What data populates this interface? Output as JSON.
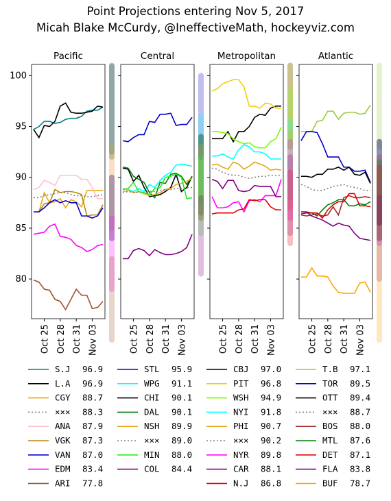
{
  "title": "Point Projections entering Nov 5, 2017",
  "subtitle": "Micah Blake McCurdy, @IneffectiveMath, hockeyviz.com",
  "chart_data": [
    {
      "type": "line",
      "title": "Pacific",
      "x": [
        "Oct 23",
        "Oct 24",
        "Oct 25",
        "Oct 26",
        "Oct 27",
        "Oct 28",
        "Oct 29",
        "Oct 30",
        "Oct 31",
        "Nov 01",
        "Nov 02",
        "Nov 03",
        "Nov 04",
        "Nov 05"
      ],
      "xticks": [
        "Oct 25",
        "Oct 28",
        "Oct 31",
        "Nov 03"
      ],
      "ylim": [
        76.1,
        101.1
      ],
      "yticks": [
        80,
        85,
        90,
        95,
        100
      ],
      "series": [
        {
          "name": "S.J",
          "value_label": "96.9",
          "color": "#008080",
          "range": [
            92.5,
            100.9
          ],
          "values": [
            94.7,
            95.0,
            95.5,
            95.5,
            95.3,
            95.4,
            95.7,
            95.8,
            95.8,
            96.0,
            96.5,
            96.6,
            96.6,
            96.9
          ]
        },
        {
          "name": "L.A",
          "value_label": "96.9",
          "color": "#000000",
          "range": [
            92,
            101
          ],
          "values": [
            94.7,
            93.9,
            95.1,
            95.0,
            95.5,
            97.0,
            97.3,
            96.4,
            96.3,
            96.3,
            96.4,
            96.5,
            97.0,
            96.9
          ]
        },
        {
          "name": "CGY",
          "value_label": "88.7",
          "color": "#e6a817",
          "range": [
            85,
            93
          ],
          "values": [
            86.6,
            86.6,
            88.5,
            87.5,
            87.6,
            87.9,
            87.0,
            87.8,
            87.6,
            87.1,
            88.7,
            88.7,
            88.7,
            88.7
          ]
        },
        {
          "name": "×××",
          "value_label": "88.3",
          "color": "#808080",
          "dash": true,
          "values": [
            88.0,
            88.0,
            88.2,
            88.3,
            88.4,
            88.5,
            88.5,
            88.3,
            88.2,
            88.2,
            88.1,
            88.1,
            88.2,
            88.3
          ]
        },
        {
          "name": "ANA",
          "value_label": "87.9",
          "color": "#ffc0cb",
          "range": [
            85,
            91.5
          ],
          "values": [
            88.8,
            89.0,
            89.7,
            89.5,
            89.2,
            90.2,
            90.2,
            90.2,
            90.2,
            89.8,
            89.8,
            89.0,
            87.9,
            87.9
          ]
        },
        {
          "name": "VGK",
          "value_label": "87.3",
          "color": "#b8860b",
          "range": [
            84,
            90
          ],
          "values": [
            86.6,
            86.6,
            87.4,
            87.5,
            88.8,
            88.5,
            88.6,
            88.6,
            88.5,
            88.3,
            86.2,
            86.3,
            86.3,
            87.3
          ]
        },
        {
          "name": "VAN",
          "value_label": "87.0",
          "color": "#0000cd",
          "range": [
            84,
            90
          ],
          "values": [
            86.6,
            86.6,
            87.0,
            87.5,
            87.8,
            87.5,
            87.7,
            87.5,
            87.5,
            86.2,
            86.2,
            86.0,
            86.2,
            87.0
          ]
        },
        {
          "name": "EDM",
          "value_label": "83.4",
          "color": "#ff00ff",
          "range": [
            79,
            86
          ],
          "values": [
            84.4,
            84.5,
            84.6,
            85.2,
            85.4,
            84.2,
            84.1,
            83.9,
            83.3,
            83.1,
            82.7,
            82.9,
            83.3,
            83.4
          ]
        },
        {
          "name": "ARI",
          "value_label": "77.8",
          "color": "#a0522d",
          "range": [
            74,
            82
          ],
          "values": [
            79.9,
            79.7,
            79.0,
            78.9,
            78.0,
            77.8,
            77.0,
            78.0,
            79.0,
            78.4,
            78.4,
            77.1,
            77.2,
            77.8
          ]
        }
      ]
    },
    {
      "type": "line",
      "title": "Central",
      "x": [
        "Oct 23",
        "Oct 24",
        "Oct 25",
        "Oct 26",
        "Oct 27",
        "Oct 28",
        "Oct 29",
        "Oct 30",
        "Oct 31",
        "Nov 01",
        "Nov 02",
        "Nov 03",
        "Nov 04",
        "Nov 05"
      ],
      "xticks": [
        "Oct 25",
        "Oct 28",
        "Oct 31",
        "Nov 03"
      ],
      "series": [
        {
          "name": "STL",
          "value_label": "95.9",
          "color": "#0000cd",
          "range": [
            92,
            100
          ],
          "values": [
            93.6,
            93.5,
            93.9,
            94.2,
            94.2,
            95.5,
            95.4,
            96.2,
            96.2,
            96.3,
            95.1,
            95.2,
            95.2,
            95.9
          ]
        },
        {
          "name": "WPG",
          "value_label": "91.1",
          "color": "#00ffff",
          "range": [
            87.5,
            96
          ],
          "values": [
            88.9,
            88.8,
            88.6,
            88.9,
            88.6,
            89.3,
            89.0,
            89.7,
            90.2,
            90.5,
            91.2,
            91.3,
            91.2,
            91.1
          ]
        },
        {
          "name": "CHI",
          "value_label": "90.1",
          "color": "#000000",
          "range": [
            86.5,
            94
          ],
          "values": [
            90.9,
            90.8,
            89.6,
            90.2,
            89.0,
            88.1,
            88.2,
            88.3,
            88.6,
            89.0,
            90.3,
            88.6,
            89.0,
            90.1
          ]
        },
        {
          "name": "DAL",
          "value_label": "90.1",
          "color": "#008000",
          "range": [
            86,
            94
          ],
          "values": [
            91.0,
            90.9,
            90.1,
            89.8,
            89.5,
            88.5,
            88.0,
            89.5,
            89.4,
            90.3,
            90.4,
            90.1,
            89.3,
            90.1
          ]
        },
        {
          "name": "NSH",
          "value_label": "89.9",
          "color": "#e6a817",
          "range": [
            86,
            93
          ],
          "values": [
            88.6,
            88.7,
            88.5,
            88.6,
            88.4,
            88.2,
            88.3,
            88.5,
            88.8,
            88.9,
            89.3,
            89.4,
            89.6,
            89.9
          ]
        },
        {
          "name": "×××",
          "value_label": "89.0",
          "color": "#808080",
          "dash": true,
          "values": [
            88.5,
            88.6,
            88.5,
            88.5,
            88.5,
            88.6,
            88.6,
            88.7,
            88.8,
            88.8,
            88.9,
            88.9,
            89.0,
            89.0
          ]
        },
        {
          "name": "MIN",
          "value_label": "88.0",
          "color": "#22ee22",
          "range": [
            84.5,
            92
          ],
          "values": [
            88.8,
            88.9,
            89.5,
            88.6,
            88.5,
            88.3,
            88.9,
            89.0,
            90.0,
            90.1,
            90.3,
            90.0,
            87.9,
            88.0
          ]
        },
        {
          "name": "COL",
          "value_label": "84.4",
          "color": "#800080",
          "range": [
            80.5,
            88
          ],
          "values": [
            82.0,
            82.0,
            82.8,
            83.0,
            82.8,
            82.3,
            82.9,
            82.6,
            82.4,
            82.4,
            82.5,
            82.7,
            83.1,
            84.4
          ]
        }
      ]
    },
    {
      "type": "line",
      "title": "Metropolitan",
      "x": [
        "Oct 23",
        "Oct 24",
        "Oct 25",
        "Oct 26",
        "Oct 27",
        "Oct 28",
        "Oct 29",
        "Oct 30",
        "Oct 31",
        "Nov 01",
        "Nov 02",
        "Nov 03",
        "Nov 04",
        "Nov 05"
      ],
      "xticks": [
        "Oct 25",
        "Oct 28",
        "Oct 31",
        "Nov 03"
      ],
      "series": [
        {
          "name": "CBJ",
          "value_label": "97.0",
          "color": "#000000",
          "range": [
            93,
            101
          ],
          "values": [
            93.8,
            93.8,
            93.8,
            94.5,
            93.5,
            94.5,
            94.5,
            95.0,
            95.9,
            96.2,
            96.1,
            96.8,
            97.0,
            97.0
          ]
        },
        {
          "name": "PIT",
          "value_label": "96.8",
          "color": "#f0d000",
          "range": [
            93,
            101
          ],
          "values": [
            98.5,
            98.7,
            99.2,
            99.4,
            99.6,
            99.6,
            98.9,
            97.0,
            97.0,
            96.8,
            97.3,
            97.2,
            96.8,
            96.8
          ]
        },
        {
          "name": "WSH",
          "value_label": "94.9",
          "color": "#7cfc00",
          "range": [
            91,
            98.5
          ],
          "values": [
            94.5,
            94.5,
            94.4,
            94.3,
            93.8,
            93.5,
            93.3,
            93.4,
            93.0,
            92.9,
            92.9,
            93.5,
            93.8,
            94.9
          ]
        },
        {
          "name": "NYI",
          "value_label": "91.8",
          "color": "#00ffff",
          "range": [
            88,
            95.5
          ],
          "values": [
            92.1,
            92.1,
            92.3,
            92.0,
            91.8,
            92.7,
            93.2,
            93.0,
            92.5,
            92.5,
            92.3,
            91.8,
            91.8,
            91.8
          ]
        },
        {
          "name": "PHI",
          "value_label": "90.7",
          "color": "#e6a817",
          "range": [
            87,
            94.5
          ],
          "values": [
            91.2,
            91.3,
            91.0,
            90.8,
            91.5,
            91.3,
            90.8,
            91.1,
            91.5,
            91.3,
            91.1,
            90.7,
            90.8,
            90.7
          ]
        },
        {
          "name": "×××",
          "value_label": "90.2",
          "color": "#808080",
          "dash": true,
          "values": [
            90.9,
            90.8,
            90.5,
            90.3,
            90.2,
            90.2,
            90.0,
            89.9,
            90.0,
            90.1,
            90.1,
            90.2,
            90.2,
            90.2
          ]
        },
        {
          "name": "NYR",
          "value_label": "89.8",
          "color": "#ff00ff",
          "range": [
            86,
            93.5
          ],
          "values": [
            88.1,
            87.0,
            87.0,
            87.1,
            87.5,
            87.6,
            86.6,
            87.7,
            87.8,
            87.6,
            88.2,
            88.2,
            88.2,
            89.8
          ]
        },
        {
          "name": "CAR",
          "value_label": "88.1",
          "color": "#800080",
          "range": [
            84.5,
            92
          ],
          "values": [
            89.8,
            89.6,
            88.9,
            89.7,
            89.7,
            88.7,
            88.6,
            88.7,
            89.2,
            89.1,
            89.1,
            89.1,
            88.1,
            88.1
          ]
        },
        {
          "name": "N.J",
          "value_label": "86.8",
          "color": "#e00000",
          "range": [
            83.5,
            90.5
          ],
          "values": [
            86.4,
            86.5,
            86.5,
            86.5,
            86.5,
            86.8,
            86.9,
            87.8,
            87.7,
            87.8,
            87.8,
            87.1,
            86.8,
            86.8
          ]
        }
      ]
    },
    {
      "type": "line",
      "title": "Atlantic",
      "x": [
        "Oct 23",
        "Oct 24",
        "Oct 25",
        "Oct 26",
        "Oct 27",
        "Oct 28",
        "Oct 29",
        "Oct 30",
        "Oct 31",
        "Nov 01",
        "Nov 02",
        "Nov 03",
        "Nov 04",
        "Nov 05"
      ],
      "xticks": [
        "Oct 25",
        "Oct 28",
        "Oct 31",
        "Nov 03"
      ],
      "series": [
        {
          "name": "T.B",
          "value_label": "97.1",
          "color": "#9acd32",
          "range": [
            93,
            101
          ],
          "values": [
            94.5,
            94.5,
            94.5,
            95.5,
            95.6,
            96.5,
            96.5,
            95.7,
            96.3,
            96.4,
            96.4,
            96.2,
            96.3,
            97.1
          ]
        },
        {
          "name": "TOR",
          "value_label": "89.5",
          "color": "#0000cd",
          "range": [
            85.5,
            93.5
          ],
          "values": [
            93.6,
            94.5,
            94.5,
            94.4,
            93.3,
            92.0,
            92.0,
            92.0,
            91.0,
            91.0,
            90.6,
            90.6,
            90.7,
            89.5
          ]
        },
        {
          "name": "OTT",
          "value_label": "89.4",
          "color": "#000000",
          "range": [
            85.5,
            93.5
          ],
          "values": [
            90.1,
            90.1,
            90.0,
            90.3,
            90.3,
            90.8,
            90.8,
            91.0,
            90.7,
            91.0,
            90.3,
            90.2,
            90.5,
            89.4
          ]
        },
        {
          "name": "×××",
          "value_label": "88.7",
          "color": "#808080",
          "dash": true,
          "values": [
            89.3,
            89.1,
            88.8,
            88.7,
            88.7,
            88.9,
            89.1,
            89.2,
            89.3,
            89.1,
            89.0,
            88.9,
            88.7,
            88.7
          ]
        },
        {
          "name": "BOS",
          "value_label": "88.0",
          "color": "#a52a2a",
          "range": [
            84,
            92
          ],
          "values": [
            86.3,
            86.2,
            86.3,
            86.4,
            86.2,
            86.3,
            87.1,
            86.3,
            88.0,
            88.2,
            88.0,
            88.0,
            88.1,
            88.0
          ]
        },
        {
          "name": "MTL",
          "value_label": "87.6",
          "color": "#008000",
          "range": [
            84,
            91.5
          ],
          "values": [
            86.6,
            86.6,
            86.5,
            86.2,
            86.8,
            87.3,
            87.5,
            87.8,
            87.8,
            87.2,
            87.2,
            87.4,
            87.3,
            87.6
          ]
        },
        {
          "name": "DET",
          "value_label": "87.1",
          "color": "#e00000",
          "range": [
            83.5,
            91
          ],
          "values": [
            86.4,
            86.5,
            86.5,
            86.5,
            86.0,
            86.8,
            87.3,
            87.6,
            87.6,
            88.4,
            88.4,
            87.2,
            87.2,
            87.1
          ]
        },
        {
          "name": "FLA",
          "value_label": "83.8",
          "color": "#800080",
          "range": [
            80,
            88
          ],
          "values": [
            86.6,
            86.6,
            86.2,
            86.0,
            85.8,
            85.5,
            85.2,
            85.5,
            85.3,
            85.2,
            84.5,
            84.0,
            83.9,
            83.8
          ]
        },
        {
          "name": "BUF",
          "value_label": "78.7",
          "color": "#ffa500",
          "range": [
            74,
            83
          ],
          "values": [
            80.2,
            80.2,
            81.1,
            80.3,
            80.3,
            80.2,
            79.3,
            78.7,
            78.6,
            78.6,
            78.6,
            79.6,
            79.7,
            78.7
          ]
        }
      ]
    }
  ]
}
